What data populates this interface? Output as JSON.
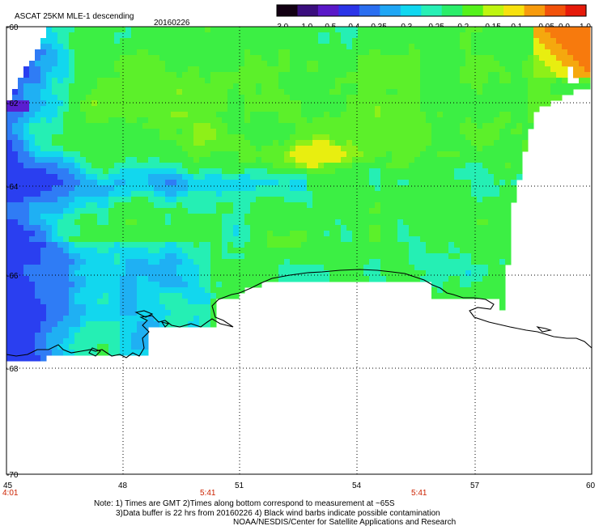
{
  "header": {
    "title": "ASCAT 25KM MLE-1 descending",
    "date": "20160226"
  },
  "colorbar": {
    "labels": [
      "-3.0",
      "-1.0",
      "-0.5",
      "-0.4",
      "-0.35",
      "-0.3",
      "-0.25",
      "-0.2",
      "-0.15",
      "-0.1",
      "-0.05",
      "0.0",
      "1.0"
    ],
    "colors": [
      "#120012",
      "#3a0e7d",
      "#5a18c8",
      "#2b34e8",
      "#2a6ef0",
      "#1fa6f5",
      "#10d7f0",
      "#27f0b6",
      "#2aee6a",
      "#55f21b",
      "#bff510",
      "#f7e10e",
      "#f79b0c",
      "#f2520a",
      "#e61a0a"
    ]
  },
  "axes": {
    "lat_labels": [
      "-60",
      "-62",
      "-64",
      "-66",
      "-68",
      "-70"
    ],
    "lon_labels": [
      "45",
      "48",
      "51",
      "54",
      "57",
      "60"
    ],
    "times": [
      "4:01",
      "5:41",
      "5:41"
    ]
  },
  "notes": {
    "line1": "Note: 1) Times are GMT 2)Times along bottom correspond to measurement at ~65S",
    "line2": "3)Data buffer is 22 hrs from 20160226 4) Black wind barbs indicate possible contamination",
    "line3": "NOAA/NESDIS/Center for Satellite Applications and Research"
  },
  "palette": {
    "deep_blue": "#2a3ff0",
    "blue": "#2f7cf5",
    "cyan": "#12d7ee",
    "cyan_green": "#25efb4",
    "green": "#3cef44",
    "lime": "#8ef018",
    "yellow": "#e8ee10",
    "orange": "#f77a0d",
    "violet": "#5a1ed0"
  }
}
